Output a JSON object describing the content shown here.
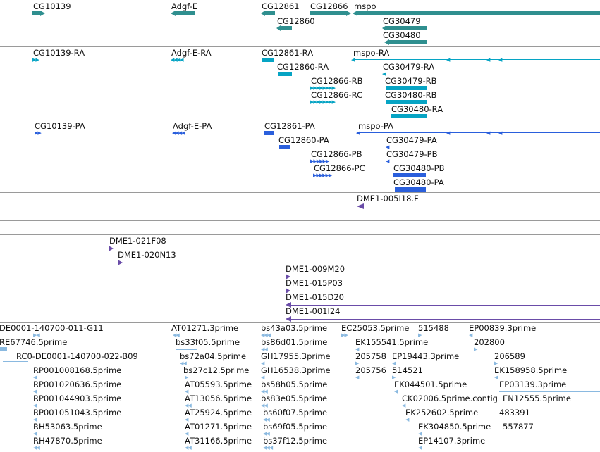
{
  "colors": {
    "gene": "#2f8f8f",
    "flybase_transcript": "#06a4c4",
    "protein": "#2a5fdc",
    "clone": "#6a4ca8",
    "est": "#8ab9e0"
  },
  "genes": {
    "labels": [
      "CG10139",
      "Adgf-E",
      "CG12861",
      "CG12866",
      "mspo",
      "CG12860",
      "CG30479",
      "CG30480"
    ]
  },
  "transcripts": {
    "labels": [
      "CG10139-RA",
      "Adgf-E-RA",
      "CG12861-RA",
      "mspo-RA",
      "CG12860-RA",
      "CG30479-RA",
      "CG12866-RB",
      "CG30479-RB",
      "CG12866-RC",
      "CG30480-RB",
      "CG30480-RA"
    ]
  },
  "proteins": {
    "labels": [
      "CG10139-PA",
      "Adgf-E-PA",
      "CG12861-PA",
      "mspo-PA",
      "CG12860-PA",
      "CG30479-PA",
      "CG12866-PB",
      "CG30479-PB",
      "CG12866-PC",
      "CG30480-PB",
      "CG30480-PA"
    ]
  },
  "clones_a": {
    "labels": [
      "DME1-005I18.F"
    ]
  },
  "clones_b": {
    "labels": [
      "DME1-021F08",
      "DME1-020N13",
      "DME1-009M20",
      "DME1-015P03",
      "DME1-015D20",
      "DME1-001I24"
    ]
  },
  "ests": {
    "labels": [
      "DE0001-140700-011-G11",
      "RE67746.5prime",
      "RC0-DE0001-140700-022-B09",
      "RP001008168.5prime",
      "RP001020636.5prime",
      "RP001044903.5prime",
      "RP001051043.5prime",
      "RH53063.5prime",
      "RH47870.5prime",
      "AT01271.3prime",
      "bs33f05.5prime",
      "bs72a04.5prime",
      "bs27c12.5prime",
      "AT05593.5prime",
      "AT13056.5prime",
      "AT25924.5prime",
      "AT01271.5prime",
      "AT31166.5prime",
      "bs43a03.5prime",
      "bs86d01.5prime",
      "GH17955.3prime",
      "GH16538.3prime",
      "bs58h05.5prime",
      "bs83e05.5prime",
      "bs60f07.5prime",
      "bs69f05.5prime",
      "bs37f12.5prime",
      "EC25053.5prime",
      "515488",
      "EK155541.5prime",
      "205758",
      "EP19443.3prime",
      "205756",
      "514521",
      "EK044501.5prime",
      "CK02006.5prime.contig",
      "EK252602.5prime",
      "EK304850.5prime",
      "EP14107.3prime",
      "EP00839.3prime",
      "202800",
      "206589",
      "EK158958.5prime",
      "EP03139.3prime",
      "EN12555.5prime",
      "483391",
      "557877"
    ]
  }
}
